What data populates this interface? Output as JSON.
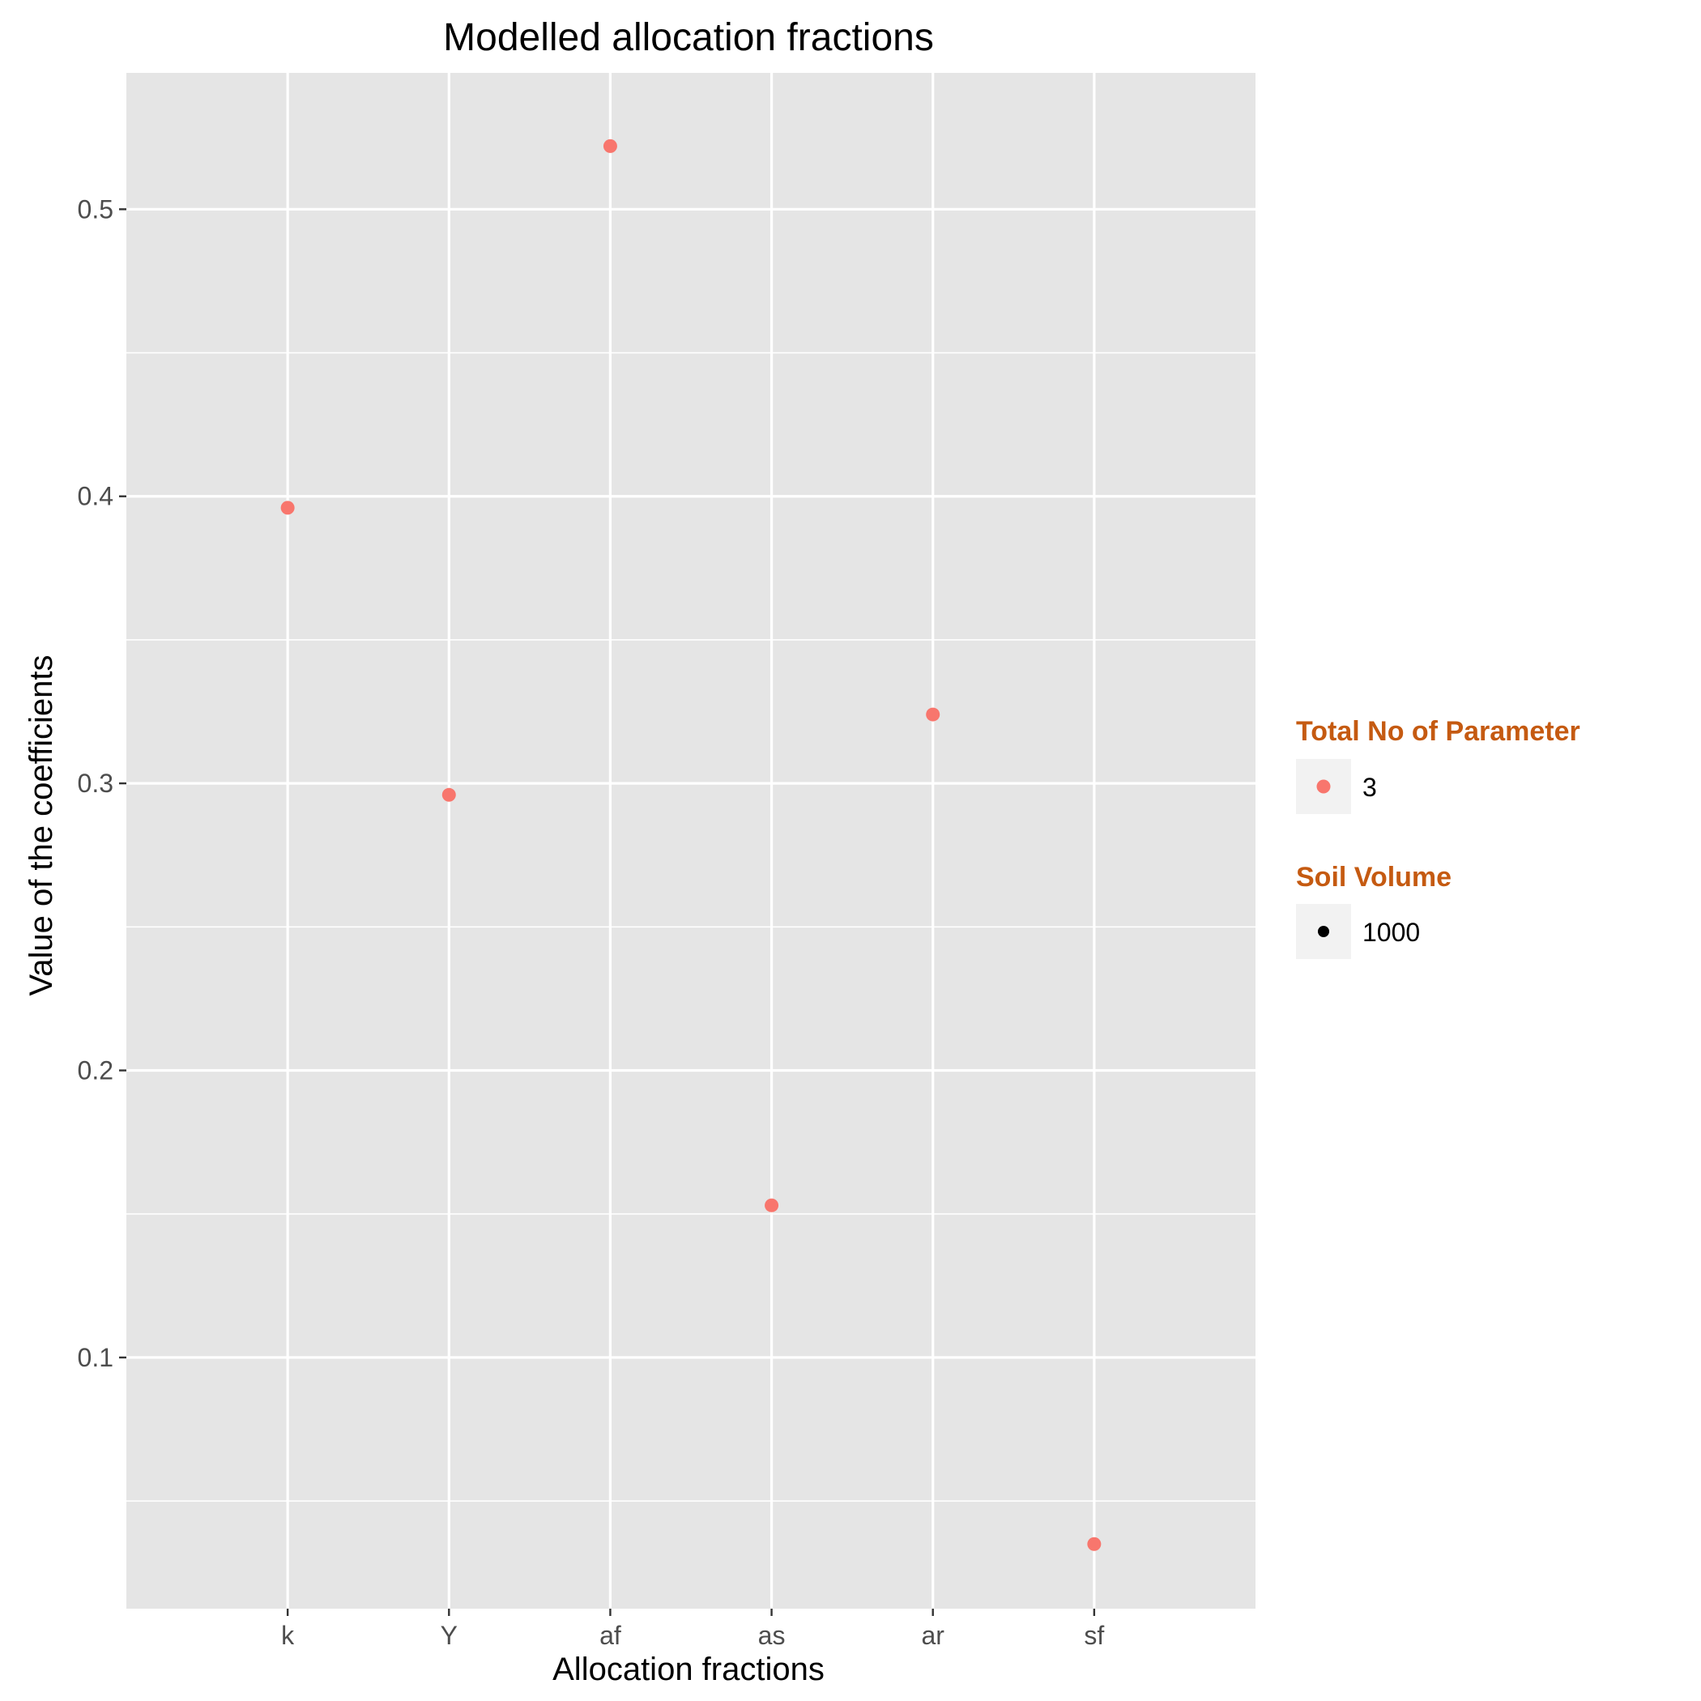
{
  "chart_data": {
    "type": "scatter",
    "title": "Modelled allocation fractions",
    "xlabel": "Allocation fractions",
    "ylabel": "Value of the coefficients",
    "categories": [
      "k",
      "Y",
      "af",
      "as",
      "ar",
      "sf"
    ],
    "series": [
      {
        "values": [
          0.396,
          0.296,
          0.522,
          0.153,
          0.324,
          0.035
        ],
        "color": "#F8766D"
      }
    ],
    "ylim": [
      0.0125,
      0.5475
    ],
    "y_ticks": [
      "0.1",
      "0.2",
      "0.3",
      "0.4",
      "0.5"
    ],
    "grid": true,
    "legend_position": "right",
    "legends": [
      {
        "title": "Total No of Parameter",
        "title_color": "#C55A11",
        "label": "3",
        "key_color": "#F8766D"
      },
      {
        "title": "Soil Volume",
        "title_color": "#C55A11",
        "label": "1000",
        "key_color": "#000000"
      }
    ],
    "panel_background": "#E5E5E5",
    "gridline_color": "#FFFFFF"
  }
}
